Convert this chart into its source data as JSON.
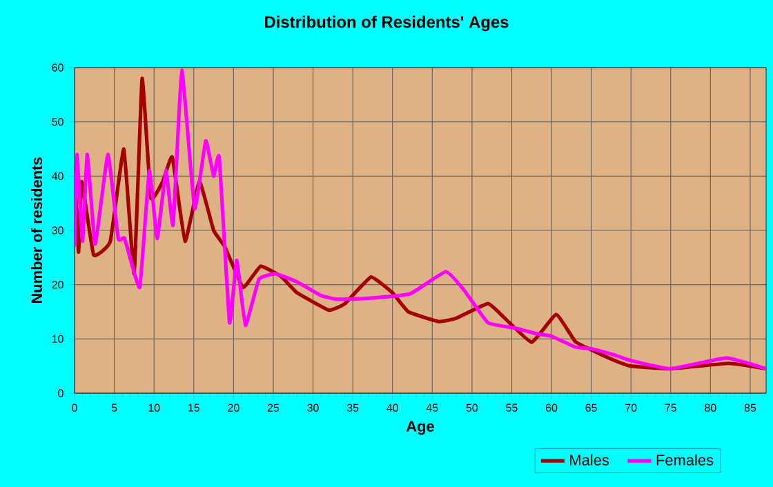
{
  "chart_data": {
    "type": "line",
    "title": "Distribution of Residents' Ages",
    "xlabel": "Age",
    "ylabel": "Number of residents",
    "xlim": [
      0,
      87
    ],
    "ylim": [
      0,
      60
    ],
    "xticks": [
      0,
      5,
      10,
      15,
      20,
      25,
      30,
      35,
      40,
      45,
      50,
      55,
      60,
      65,
      70,
      75,
      80,
      85
    ],
    "yticks": [
      0,
      10,
      20,
      30,
      40,
      50,
      60
    ],
    "grid": true,
    "legend": "bottom",
    "marker": "none",
    "line_style": "solid",
    "series": [
      {
        "name": "Males",
        "color": "#a50000",
        "x": [
          0,
          0.5,
          0.9,
          2.4,
          4.5,
          6.2,
          7.5,
          8.5,
          9.6,
          11.1,
          12.3,
          13.9,
          15.7,
          17.5,
          18.9,
          21.2,
          23.4,
          26,
          28,
          32,
          34,
          37.3,
          40,
          42,
          45.8,
          48,
          52,
          54,
          57.5,
          60.6,
          63,
          65,
          68,
          70,
          75,
          82.3,
          87
        ],
        "values": [
          42,
          26,
          39,
          25.5,
          28,
          45,
          22,
          58,
          36,
          39,
          43.5,
          28,
          39,
          30,
          27,
          19.5,
          23.4,
          21.5,
          18.5,
          15.3,
          16.5,
          21.4,
          18.5,
          15,
          13.2,
          13.8,
          16.5,
          14,
          9.4,
          14.5,
          9.5,
          8,
          6,
          5,
          4.5,
          5.5,
          4.5
        ]
      },
      {
        "name": "Females",
        "color": "#ff00ff",
        "x": [
          0,
          0.3,
          1,
          1.6,
          2.6,
          4.2,
          5.5,
          6.3,
          8.2,
          9.4,
          10.4,
          11.5,
          12.4,
          13.5,
          15.1,
          16.5,
          17.5,
          18.2,
          19.5,
          20.4,
          21.5,
          23.2,
          25.3,
          28,
          31,
          33,
          37,
          42.2,
          46.7,
          49,
          52,
          55.4,
          58,
          60,
          63,
          65,
          68,
          70,
          75,
          82,
          87
        ],
        "values": [
          27,
          44,
          28,
          44,
          27.5,
          44,
          28.5,
          28.5,
          19.5,
          41,
          28.5,
          41,
          31,
          59.5,
          34,
          46.5,
          40,
          43.5,
          13,
          24.5,
          12.5,
          21,
          22,
          20.5,
          18,
          17.3,
          17.5,
          18.3,
          22.4,
          19,
          13,
          12,
          11,
          10.5,
          8.5,
          8.2,
          7,
          6,
          4.5,
          6.5,
          4.5
        ]
      }
    ]
  }
}
